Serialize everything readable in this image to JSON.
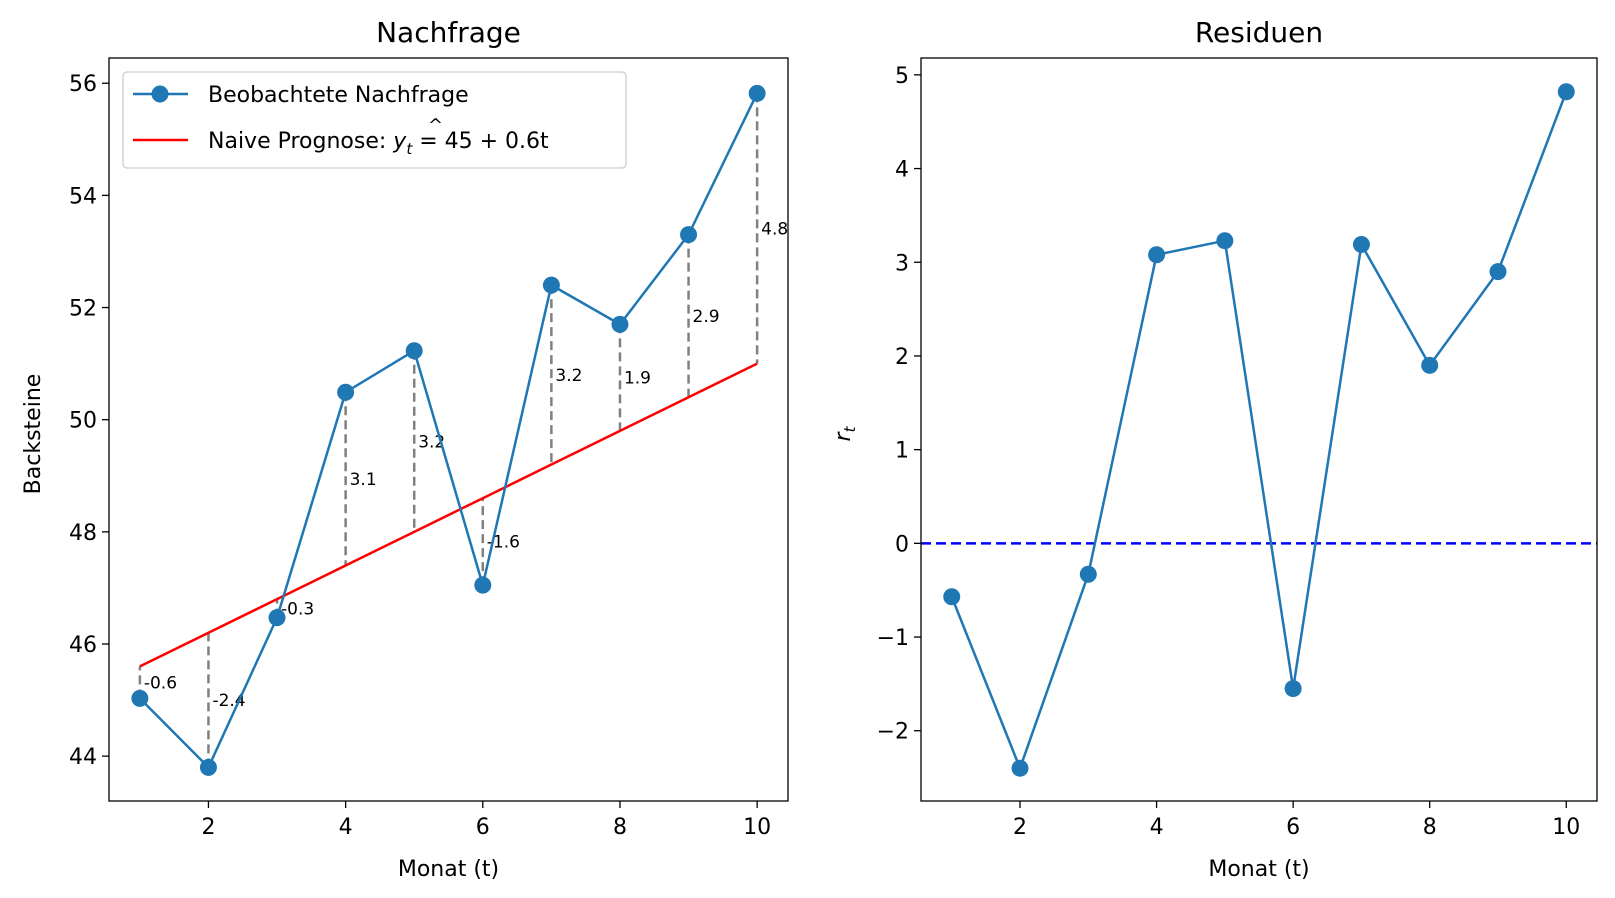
{
  "chart_data": [
    {
      "type": "line",
      "title": "Nachfrage",
      "xlabel": "Monat (t)",
      "ylabel": "Backsteine",
      "xlim": [
        0.55,
        10.45
      ],
      "ylim": [
        43.2,
        56.45
      ],
      "xticks": [
        2,
        4,
        6,
        8,
        10
      ],
      "yticks": [
        44,
        46,
        48,
        50,
        52,
        54,
        56
      ],
      "legend_position": "top-left",
      "x": [
        1,
        2,
        3,
        4,
        5,
        6,
        7,
        8,
        9,
        10
      ],
      "series": [
        {
          "name": "Beobachtete Nachfrage",
          "values": [
            45.03,
            43.8,
            46.47,
            50.49,
            51.23,
            47.05,
            52.4,
            51.7,
            53.3,
            55.82
          ],
          "color": "#1f77b4",
          "marker": "circle"
        },
        {
          "name": "Naive Prognose: ",
          "formula": {
            "base": "y",
            "sub": "t",
            "rhs": " = 45 + 0.6t"
          },
          "values": [
            45.6,
            46.2,
            46.8,
            47.4,
            48.0,
            48.6,
            49.2,
            49.8,
            50.4,
            51.0
          ],
          "color": "#ff0000",
          "marker": "none"
        }
      ],
      "residual_labels": [
        "-0.6",
        "-2.4",
        "-0.3",
        "3.1",
        "3.2",
        "-1.6",
        "3.2",
        "1.9",
        "2.9",
        "4.8"
      ],
      "residual_line_color": "#808080"
    },
    {
      "type": "line",
      "title": "Residuen",
      "xlabel": "Monat (t)",
      "ylabel": {
        "base": "r",
        "sub": "t"
      },
      "xlim": [
        0.55,
        10.45
      ],
      "ylim": [
        -2.75,
        5.18
      ],
      "xticks": [
        2,
        4,
        6,
        8,
        10
      ],
      "yticks": [
        -2,
        -1,
        0,
        1,
        2,
        3,
        4,
        5
      ],
      "ytick_labels": [
        "−2",
        "−1",
        "0",
        "1",
        "2",
        "3",
        "4",
        "5"
      ],
      "x": [
        1,
        2,
        3,
        4,
        5,
        6,
        7,
        8,
        9,
        10
      ],
      "series": [
        {
          "values": [
            -0.57,
            -2.4,
            -0.33,
            3.08,
            3.23,
            -1.55,
            3.19,
            1.9,
            2.9,
            4.82
          ],
          "color": "#1f77b4",
          "marker": "circle"
        }
      ],
      "reference_line": {
        "y": 0,
        "color": "#0000ff",
        "style": "dashed"
      }
    }
  ]
}
